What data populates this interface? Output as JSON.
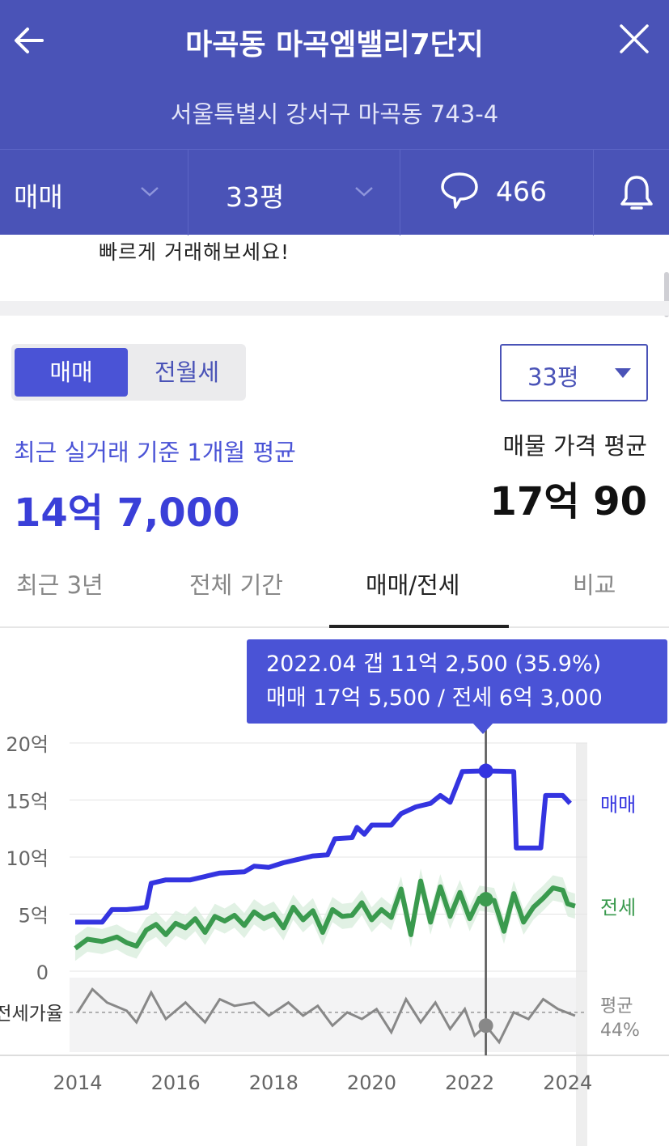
{
  "header": {
    "title": "마곡동 마곡엠밸리7단지",
    "address": "서울특별시 강서구 마곡동 743-4"
  },
  "filters": {
    "deal_type": "매매",
    "size": "33평",
    "comment_count": "466"
  },
  "notice": {
    "text": "빠르게 거래해보세요!"
  },
  "segment": {
    "options": [
      "매매",
      "전월세"
    ],
    "selected": "매매"
  },
  "size_select": {
    "value": "33평"
  },
  "summary": {
    "recent_label": "최근 실거래 기준 1개월 평균",
    "recent_value": "14억 7,000",
    "listing_label": "매물 가격 평균",
    "listing_value": "17억 90"
  },
  "tabs": [
    {
      "label": "최근 3년"
    },
    {
      "label": "전체 기간"
    },
    {
      "label": "매매/전세",
      "active": true
    },
    {
      "label": "비교"
    }
  ],
  "tooltip": {
    "line1": "2022.04  갭 11억 2,500 (35.9%)",
    "line2": "매매 17억 5,500 / 전세 6억 3,000"
  },
  "chart_data": {
    "type": "line",
    "y_ticks": [
      "20억",
      "15억",
      "10억",
      "5억",
      "0"
    ],
    "ylim": [
      0,
      20
    ],
    "x_ticks": [
      "2014",
      "2016",
      "2018",
      "2020",
      "2022",
      "2024"
    ],
    "xlim": [
      2014,
      2024.4
    ],
    "ratio_label": "전세가율",
    "ratio_avg_label": [
      "평균",
      "44%"
    ],
    "series": [
      {
        "name": "매매",
        "color": "#3434e0",
        "points": [
          [
            2013.95,
            4.3
          ],
          [
            2014.5,
            4.3
          ],
          [
            2014.7,
            5.4
          ],
          [
            2015.0,
            5.4
          ],
          [
            2015.25,
            5.5
          ],
          [
            2015.4,
            5.6
          ],
          [
            2015.5,
            7.7
          ],
          [
            2015.8,
            8.0
          ],
          [
            2016.3,
            8.0
          ],
          [
            2016.6,
            8.3
          ],
          [
            2016.9,
            8.6
          ],
          [
            2017.4,
            8.7
          ],
          [
            2017.6,
            9.2
          ],
          [
            2017.9,
            9.1
          ],
          [
            2018.2,
            9.5
          ],
          [
            2018.5,
            9.8
          ],
          [
            2018.8,
            10.1
          ],
          [
            2019.1,
            10.2
          ],
          [
            2019.25,
            11.6
          ],
          [
            2019.6,
            11.7
          ],
          [
            2019.7,
            12.6
          ],
          [
            2019.85,
            12.0
          ],
          [
            2020.0,
            12.8
          ],
          [
            2020.4,
            12.8
          ],
          [
            2020.6,
            13.8
          ],
          [
            2020.9,
            14.4
          ],
          [
            2021.2,
            14.7
          ],
          [
            2021.4,
            15.4
          ],
          [
            2021.6,
            14.8
          ],
          [
            2021.85,
            17.5
          ],
          [
            2022.3,
            17.55
          ],
          [
            2022.9,
            17.5
          ],
          [
            2022.95,
            10.8
          ],
          [
            2023.45,
            10.8
          ],
          [
            2023.55,
            15.4
          ],
          [
            2023.9,
            15.4
          ],
          [
            2024.05,
            14.7
          ]
        ]
      },
      {
        "name": "전세",
        "color": "#3a9a4e",
        "points": [
          [
            2013.95,
            2.0
          ],
          [
            2014.2,
            2.8
          ],
          [
            2014.5,
            2.6
          ],
          [
            2014.8,
            3.0
          ],
          [
            2015.0,
            2.5
          ],
          [
            2015.2,
            2.2
          ],
          [
            2015.4,
            3.6
          ],
          [
            2015.6,
            4.1
          ],
          [
            2015.8,
            3.2
          ],
          [
            2016.0,
            4.2
          ],
          [
            2016.2,
            3.8
          ],
          [
            2016.4,
            4.6
          ],
          [
            2016.6,
            3.4
          ],
          [
            2016.8,
            4.8
          ],
          [
            2017.0,
            4.4
          ],
          [
            2017.2,
            4.9
          ],
          [
            2017.4,
            4.0
          ],
          [
            2017.6,
            5.2
          ],
          [
            2017.8,
            4.6
          ],
          [
            2018.0,
            5.0
          ],
          [
            2018.2,
            3.8
          ],
          [
            2018.4,
            5.6
          ],
          [
            2018.6,
            4.5
          ],
          [
            2018.8,
            5.3
          ],
          [
            2019.0,
            3.4
          ],
          [
            2019.2,
            5.4
          ],
          [
            2019.4,
            4.8
          ],
          [
            2019.6,
            4.9
          ],
          [
            2019.8,
            6.0
          ],
          [
            2020.0,
            4.5
          ],
          [
            2020.2,
            5.4
          ],
          [
            2020.4,
            4.7
          ],
          [
            2020.6,
            7.2
          ],
          [
            2020.8,
            3.2
          ],
          [
            2021.0,
            7.9
          ],
          [
            2021.2,
            4.3
          ],
          [
            2021.4,
            7.4
          ],
          [
            2021.6,
            4.8
          ],
          [
            2021.8,
            6.9
          ],
          [
            2022.0,
            4.6
          ],
          [
            2022.2,
            6.4
          ],
          [
            2022.33,
            6.3
          ],
          [
            2022.5,
            6.2
          ],
          [
            2022.7,
            3.5
          ],
          [
            2022.9,
            6.8
          ],
          [
            2023.1,
            4.3
          ],
          [
            2023.3,
            5.6
          ],
          [
            2023.5,
            6.4
          ],
          [
            2023.7,
            7.3
          ],
          [
            2023.9,
            7.1
          ],
          [
            2024.0,
            5.9
          ],
          [
            2024.15,
            5.7
          ]
        ]
      }
    ],
    "ratio_series": {
      "name": "전세가율",
      "color": "#888888",
      "avg": 44,
      "points": [
        [
          2014.0,
          44
        ],
        [
          2014.3,
          58
        ],
        [
          2014.6,
          50
        ],
        [
          2015.0,
          45
        ],
        [
          2015.2,
          38
        ],
        [
          2015.5,
          56
        ],
        [
          2015.8,
          40
        ],
        [
          2016.2,
          50
        ],
        [
          2016.6,
          38
        ],
        [
          2016.9,
          52
        ],
        [
          2017.2,
          48
        ],
        [
          2017.6,
          50
        ],
        [
          2017.9,
          42
        ],
        [
          2018.3,
          50
        ],
        [
          2018.6,
          42
        ],
        [
          2018.9,
          48
        ],
        [
          2019.2,
          36
        ],
        [
          2019.5,
          44
        ],
        [
          2019.8,
          40
        ],
        [
          2020.1,
          46
        ],
        [
          2020.4,
          32
        ],
        [
          2020.7,
          52
        ],
        [
          2021.0,
          38
        ],
        [
          2021.3,
          50
        ],
        [
          2021.6,
          34
        ],
        [
          2021.9,
          46
        ],
        [
          2022.1,
          30
        ],
        [
          2022.33,
          36
        ],
        [
          2022.6,
          26
        ],
        [
          2022.9,
          44
        ],
        [
          2023.2,
          40
        ],
        [
          2023.5,
          52
        ],
        [
          2023.8,
          46
        ],
        [
          2024.15,
          42
        ]
      ]
    },
    "selected_x": 2022.33
  }
}
